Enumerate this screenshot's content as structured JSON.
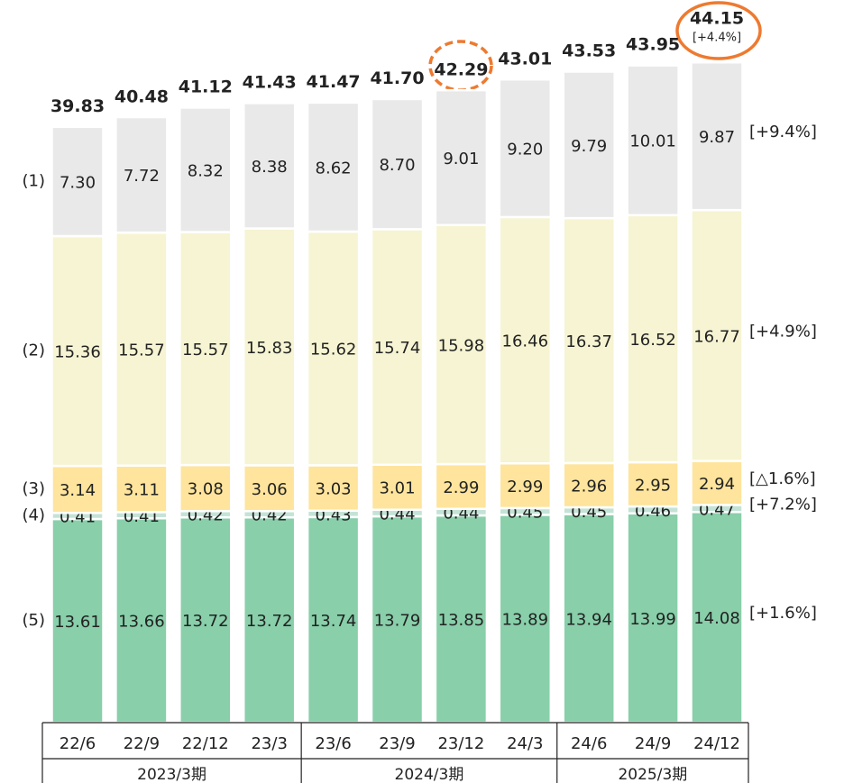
{
  "chart_data": {
    "type": "stacked_bar",
    "categories": [
      "22/6",
      "22/9",
      "22/12",
      "23/3",
      "23/6",
      "23/9",
      "23/12",
      "24/3",
      "24/6",
      "24/9",
      "24/12"
    ],
    "groups": [
      {
        "label": "2023/3期",
        "count": 4
      },
      {
        "label": "2024/3期",
        "count": 4
      },
      {
        "label": "2025/3期",
        "count": 3
      }
    ],
    "series": [
      {
        "name": "(5)",
        "color": "#88cfaa",
        "change_label": "[+1.6%]",
        "values": [
          13.61,
          13.66,
          13.72,
          13.72,
          13.74,
          13.79,
          13.85,
          13.89,
          13.94,
          13.99,
          14.08
        ],
        "value_labels": [
          "13.61",
          "13.66",
          "13.72",
          "13.72",
          "13.74",
          "13.79",
          "13.85",
          "13.89",
          "13.94",
          "13.99",
          "14.08"
        ]
      },
      {
        "name": "(4)",
        "color": "#c4e3d6",
        "change_label": "[+7.2%]",
        "values": [
          0.41,
          0.41,
          0.42,
          0.42,
          0.43,
          0.44,
          0.44,
          0.45,
          0.45,
          0.46,
          0.47
        ],
        "value_labels": [
          "0.41",
          "0.41",
          "0.42",
          "0.42",
          "0.43",
          "0.44",
          "0.44",
          "0.45",
          "0.45",
          "0.46",
          "0.47"
        ]
      },
      {
        "name": "(3)",
        "color": "#fee49c",
        "change_label": "[△1.6%]",
        "values": [
          3.14,
          3.11,
          3.08,
          3.06,
          3.03,
          3.01,
          2.99,
          2.99,
          2.96,
          2.95,
          2.94
        ],
        "value_labels": [
          "3.14",
          "3.11",
          "3.08",
          "3.06",
          "3.03",
          "3.01",
          "2.99",
          "2.99",
          "2.96",
          "2.95",
          "2.94"
        ]
      },
      {
        "name": "(2)",
        "color": "#f6f4d2",
        "change_label": "[+4.9%]",
        "values": [
          15.36,
          15.57,
          15.57,
          15.83,
          15.62,
          15.74,
          15.98,
          16.46,
          16.37,
          16.52,
          16.77
        ],
        "value_labels": [
          "15.36",
          "15.57",
          "15.57",
          "15.83",
          "15.62",
          "15.74",
          "15.98",
          "16.46",
          "16.37",
          "16.52",
          "16.77"
        ]
      },
      {
        "name": "(1)",
        "color": "#e9e9e9",
        "change_label": "[+9.4%]",
        "values": [
          7.3,
          7.72,
          8.32,
          8.38,
          8.62,
          8.7,
          9.01,
          9.2,
          9.79,
          10.01,
          9.87
        ],
        "value_labels": [
          "7.30",
          "7.72",
          "8.32",
          "8.38",
          "8.62",
          "8.70",
          "9.01",
          "9.20",
          "9.79",
          "10.01",
          "9.87"
        ]
      }
    ],
    "totals": [
      39.83,
      40.48,
      41.12,
      41.43,
      41.47,
      41.7,
      42.29,
      43.01,
      43.53,
      43.95,
      44.15
    ],
    "total_labels": [
      "39.83",
      "40.48",
      "41.12",
      "41.43",
      "41.47",
      "41.70",
      "42.29",
      "43.01",
      "43.53",
      "43.95",
      "44.15"
    ],
    "total_change_label": "[+4.4%]",
    "ylim": [
      0,
      48
    ]
  }
}
